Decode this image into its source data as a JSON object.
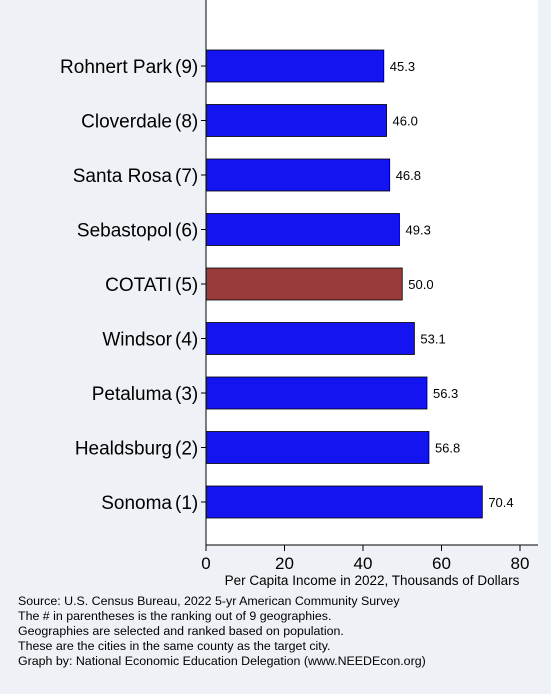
{
  "chart_data": {
    "type": "bar",
    "orientation": "horizontal",
    "categories": [
      "Rohnert Park",
      "Cloverdale",
      "Santa Rosa",
      "Sebastopol",
      "COTATI",
      "Windsor",
      "Petaluma",
      "Healdsburg",
      "Sonoma"
    ],
    "ranks": [
      "(9)",
      "(8)",
      "(7)",
      "(6)",
      "(5)",
      "(4)",
      "(3)",
      "(2)",
      "(1)"
    ],
    "values": [
      45.3,
      46.0,
      46.8,
      49.3,
      50.0,
      53.1,
      56.3,
      56.8,
      70.4
    ],
    "value_labels": [
      "45.3",
      "46.0",
      "46.8",
      "49.3",
      "50.0",
      "53.1",
      "56.3",
      "56.8",
      "70.4"
    ],
    "highlight": "COTATI",
    "xlabel": "Per Capita Income in 2022, Thousands of Dollars",
    "xlim": [
      0,
      84
    ],
    "xticks": [
      0,
      20,
      40,
      60,
      80
    ],
    "grid": false,
    "colors": {
      "bar": "#1414f0",
      "highlight": "#9a3b3b",
      "plot_background": "#ffffff",
      "figure_background": "#eef2f6"
    }
  },
  "notes": [
    "Source: U.S. Census Bureau, 2022 5-yr American Community Survey",
    "The # in parentheses is the ranking out of 9 geographies.",
    "Geographies are selected and ranked based on population.",
    "These are the cities in the same county as the target city.",
    "Graph by: National Economic Education Delegation (www.NEEDEcon.org)"
  ]
}
